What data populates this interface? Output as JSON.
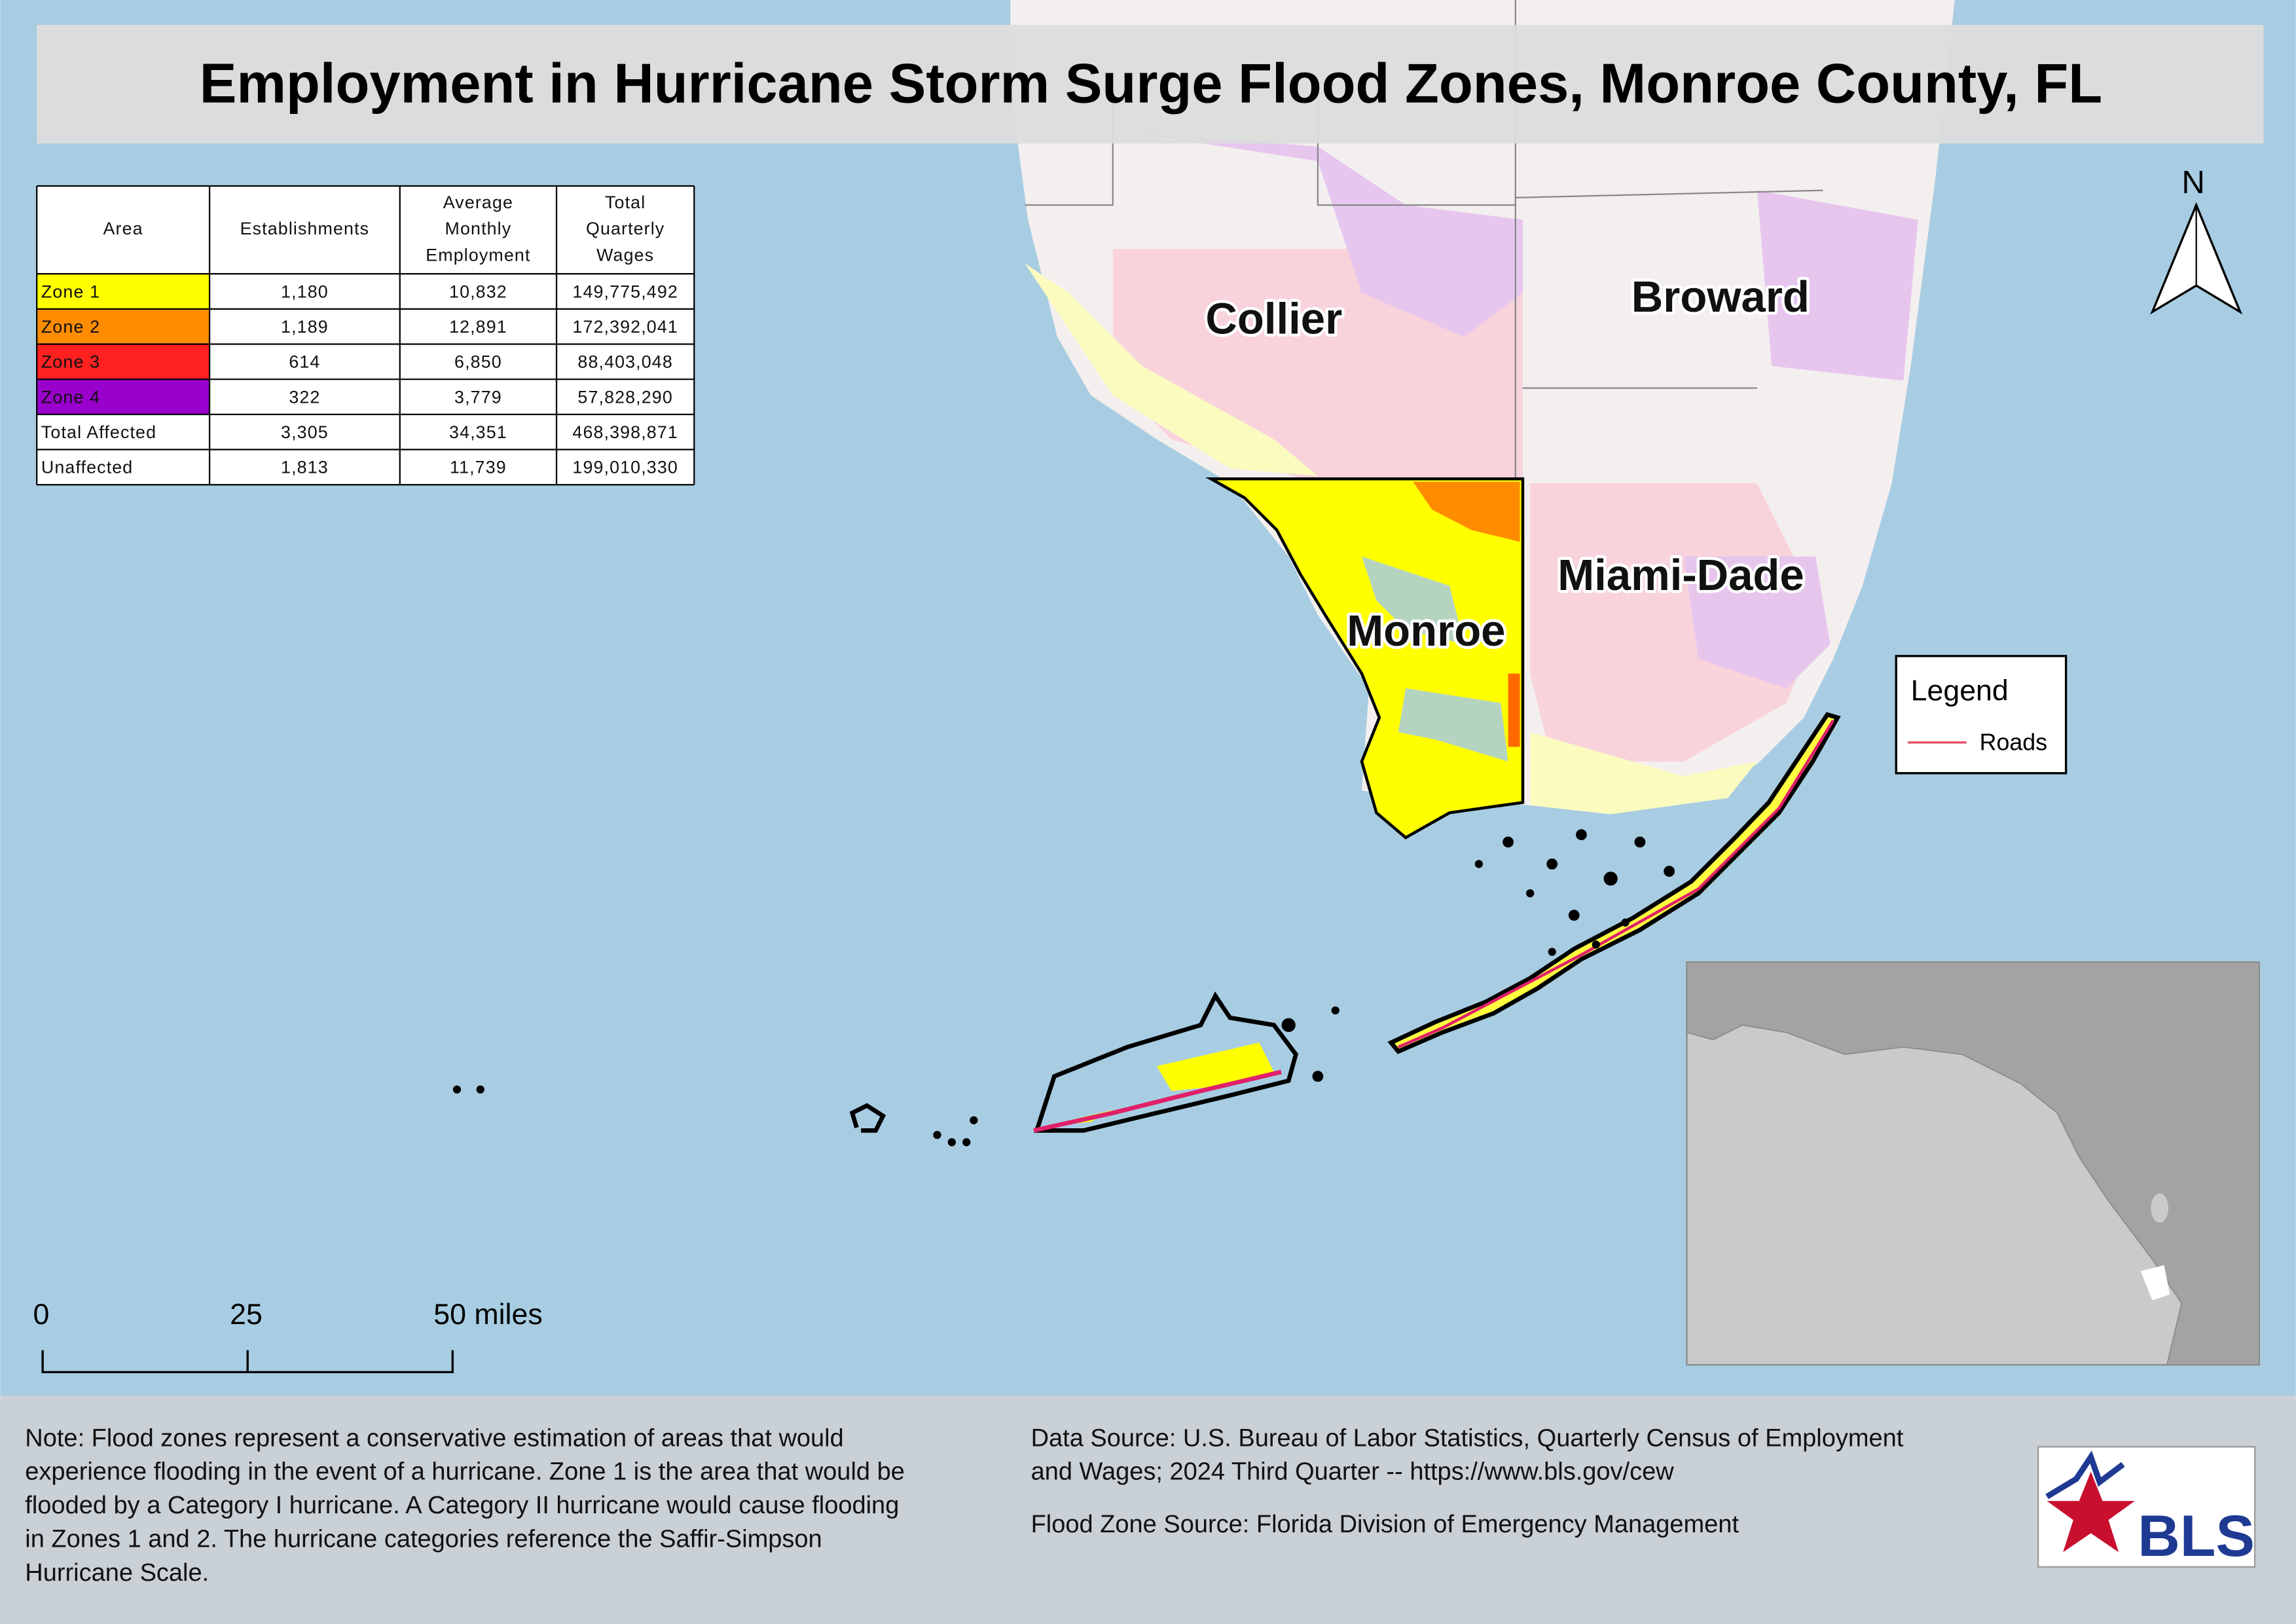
{
  "header": {
    "title": "Employment in Hurricane Storm Surge Flood Zones, Monroe County, FL"
  },
  "table": {
    "columns": [
      [
        "Area"
      ],
      [
        "Establishments"
      ],
      [
        "Average",
        "Monthly",
        "Employment"
      ],
      [
        "Total",
        "Quarterly",
        "Wages"
      ]
    ],
    "rows": [
      [
        "Zone 1",
        "1,180",
        "10,832",
        "149,775,492"
      ],
      [
        "Zone 2",
        "1,189",
        "12,891",
        "172,392,041"
      ],
      [
        "Zone 3",
        "614",
        "6,850",
        "88,403,048"
      ],
      [
        "Zone 4",
        "322",
        "3,779",
        "57,828,290"
      ],
      [
        "Total Affected",
        "3,305",
        "34,351",
        "468,398,871"
      ],
      [
        "Unaffected",
        "1,813",
        "11,739",
        "199,010,330"
      ]
    ]
  },
  "map_labels": [
    "Collier",
    "Broward",
    "Miami-Dade",
    "Monroe"
  ],
  "north_arrow": "N",
  "scale_bar": {
    "labels": [
      "0",
      "25",
      "50 miles"
    ]
  },
  "legend": {
    "title": "Legend",
    "items": [
      "Roads"
    ]
  },
  "footer": {
    "note": [
      "Note: Flood zones represent a conservative estimation of areas that would",
      "experience flooding in the event of a hurricane. Zone 1 is the area that would be",
      "flooded by a Category I hurricane. A Category II hurricane would cause flooding",
      "in Zones 1 and 2. The hurricane categories reference the Saffir-Simpson",
      "Hurricane Scale."
    ],
    "data_source": [
      "Data Source: U.S. Bureau of Labor Statistics, Quarterly Census of Employment",
      "and Wages; 2024 Third Quarter -- https://www.bls.gov/cew"
    ],
    "flood_zone_source": "Flood Zone Source: Florida Division of Emergency Management",
    "logo": "BLS"
  }
}
